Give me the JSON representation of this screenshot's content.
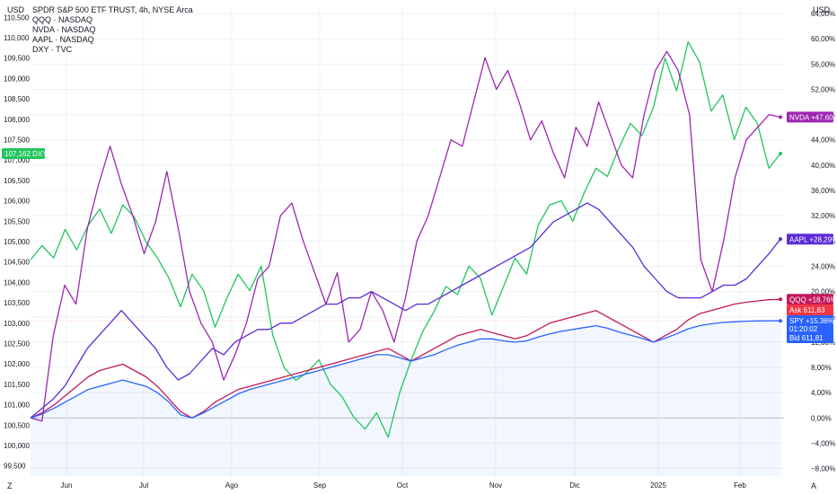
{
  "legend": {
    "main": "SPDR S&P 500 ETF TRUST, 4h, NYSE Arca",
    "items": [
      "QQQ · NASDAQ",
      "NVDA · NASDAQ",
      "AAPL · NASDAQ",
      "DXY · TVC"
    ]
  },
  "left_unit": "USD",
  "right_unit": "USD",
  "bottom_left_glyph": "Z",
  "bottom_right_glyph": "A",
  "colors": {
    "spy": "#2962ff",
    "qqq": "#c2185b",
    "nvda": "#9c27b0",
    "aapl": "#5b2bd6",
    "dxy": "#22c55e",
    "ask": "#f23645",
    "bid": "#2962ff",
    "dxy_tag": "#22c55e",
    "grid": "#eef0f3",
    "text": "#131722"
  },
  "chart_data": {
    "type": "line",
    "title": "SPDR S&P 500 ETF TRUST, 4h, NYSE Arca",
    "x_labels": [
      "Jun",
      "Jul",
      "Ago",
      "Sep",
      "Oct",
      "Nov",
      "Dic",
      "2025",
      "Feb"
    ],
    "left_axis": {
      "unit": "USD",
      "ylim": [
        99250,
        110750
      ],
      "ticks": [
        99500,
        100000,
        100500,
        101000,
        101500,
        102000,
        102500,
        103000,
        103500,
        104000,
        104500,
        105000,
        105500,
        106000,
        106500,
        107000,
        107500,
        108000,
        108500,
        109000,
        109500,
        110000,
        110500
      ],
      "tick_labels": [
        "99,500",
        "100,000",
        "100,500",
        "101,000",
        "101,500",
        "102,000",
        "102,500",
        "103,000",
        "103,500",
        "104,000",
        "104,500",
        "105,000",
        "105,500",
        "106,000",
        "106,500",
        "107,000",
        "107,500",
        "108,000",
        "108,500",
        "109,000",
        "109,500",
        "110,000",
        "110,500"
      ]
    },
    "right_axis": {
      "unit": "USD",
      "ylim": [
        -9.2,
        65.0
      ],
      "ticks": [
        -8,
        -4,
        0,
        4,
        8,
        12,
        16,
        20,
        24,
        28,
        32,
        36,
        40,
        44,
        48,
        52,
        56,
        60,
        64
      ],
      "tick_labels": [
        "−8,00%",
        "−4,00%",
        "0,00%",
        "4,00%",
        "8,00%",
        "12,00%",
        "16,00%",
        "20,00%",
        "24,00%",
        "28,00%",
        "32,00%",
        "36,00%",
        "40,00%",
        "44,00%",
        "48,00%",
        "52,00%",
        "56,00%",
        "60,00%",
        "64,00%"
      ]
    },
    "series": [
      {
        "key": "dxy",
        "name": "DXY",
        "axis": "left",
        "last_label": "107,162",
        "values": [
          104.55,
          104.9,
          104.6,
          105.3,
          104.8,
          105.4,
          105.8,
          105.2,
          105.9,
          105.6,
          105.0,
          104.6,
          104.1,
          103.4,
          104.2,
          103.8,
          102.9,
          103.6,
          104.2,
          103.8,
          104.4,
          102.7,
          101.9,
          101.6,
          101.8,
          102.1,
          101.5,
          101.2,
          100.7,
          100.4,
          100.8,
          100.2,
          101.3,
          102.1,
          102.8,
          103.3,
          103.9,
          103.7,
          104.4,
          104.1,
          103.2,
          103.9,
          104.6,
          104.2,
          105.4,
          105.9,
          106.0,
          105.5,
          106.2,
          106.8,
          106.6,
          107.3,
          107.9,
          107.6,
          108.3,
          109.5,
          108.7,
          109.9,
          109.4,
          108.2,
          108.6,
          107.5,
          108.3,
          107.9,
          106.8,
          107.16
        ]
      },
      {
        "key": "nvda",
        "name": "NVDA",
        "axis": "right",
        "last_label": "+47,60%",
        "values": [
          0,
          -0.5,
          13,
          21,
          18,
          30,
          37,
          43,
          37,
          32,
          26,
          31,
          39,
          30,
          20,
          15,
          12,
          6,
          10,
          15,
          22,
          24,
          32,
          34,
          28,
          23,
          18,
          23,
          12,
          14,
          20,
          17,
          12,
          19,
          28,
          32,
          38,
          44,
          43,
          50,
          57,
          52,
          55,
          50,
          44,
          47,
          42,
          38,
          46,
          43,
          50,
          45,
          40,
          38,
          48,
          55,
          58,
          55,
          48,
          25,
          20,
          28,
          38,
          44,
          46,
          48,
          47.6
        ]
      },
      {
        "key": "aapl",
        "name": "AAPL",
        "axis": "right",
        "last_label": "+28,29%",
        "values": [
          0,
          1.5,
          3,
          5,
          8,
          11,
          13,
          15,
          17,
          15,
          13,
          11,
          8,
          6,
          7,
          9,
          11,
          10,
          12,
          13,
          14,
          14,
          15,
          15,
          16,
          17,
          18,
          18,
          19,
          19,
          20,
          19,
          18,
          17,
          18,
          18,
          19,
          20,
          21,
          22,
          23,
          24,
          25,
          26,
          27,
          29,
          31,
          32,
          33,
          34,
          33,
          31,
          29,
          27,
          24,
          22,
          20,
          19,
          19,
          19,
          20,
          21,
          21,
          22,
          24,
          26,
          28.3
        ]
      },
      {
        "key": "qqq",
        "name": "QQQ",
        "axis": "right",
        "last_label": "+18,76%",
        "extra_labels": {
          "ask": "611,83"
        },
        "values": [
          0,
          0.8,
          2,
          3.5,
          5,
          6.5,
          7.5,
          8,
          8.5,
          7.5,
          6.5,
          5,
          3,
          1,
          0,
          1,
          2.5,
          3.5,
          4.5,
          5,
          5.5,
          6,
          6.5,
          7,
          7.5,
          8,
          8.5,
          9,
          9.5,
          10,
          10.5,
          11,
          10,
          9,
          10,
          11,
          12,
          13,
          13.5,
          14,
          13.5,
          13,
          12.5,
          13,
          14,
          15,
          15.5,
          16,
          16.5,
          17,
          16,
          15,
          14,
          13,
          12,
          13,
          14,
          15.5,
          16.5,
          17,
          17.5,
          18,
          18.3,
          18.5,
          18.7,
          18.76
        ]
      },
      {
        "key": "spy",
        "name": "SPY",
        "axis": "right",
        "last_label": "+15,36%",
        "extra_labels": {
          "countdown": "01:20:02",
          "bid": "611,81"
        },
        "values": [
          0,
          0.6,
          1.5,
          2.5,
          3.5,
          4.5,
          5,
          5.5,
          6,
          5.5,
          5,
          4,
          2.5,
          0.5,
          0,
          0.8,
          1.8,
          2.8,
          3.8,
          4.5,
          5,
          5.5,
          6,
          6.5,
          7,
          7.5,
          8,
          8.5,
          9,
          9.5,
          10,
          10,
          9.5,
          9,
          9.5,
          10,
          10.8,
          11.5,
          12,
          12.5,
          12.5,
          12.2,
          12,
          12.2,
          12.8,
          13.3,
          13.7,
          14,
          14.3,
          14.6,
          14.2,
          13.6,
          13.1,
          12.6,
          12,
          12.6,
          13.3,
          14.1,
          14.6,
          14.9,
          15.1,
          15.2,
          15.3,
          15.35,
          15.36,
          15.36
        ]
      }
    ]
  }
}
